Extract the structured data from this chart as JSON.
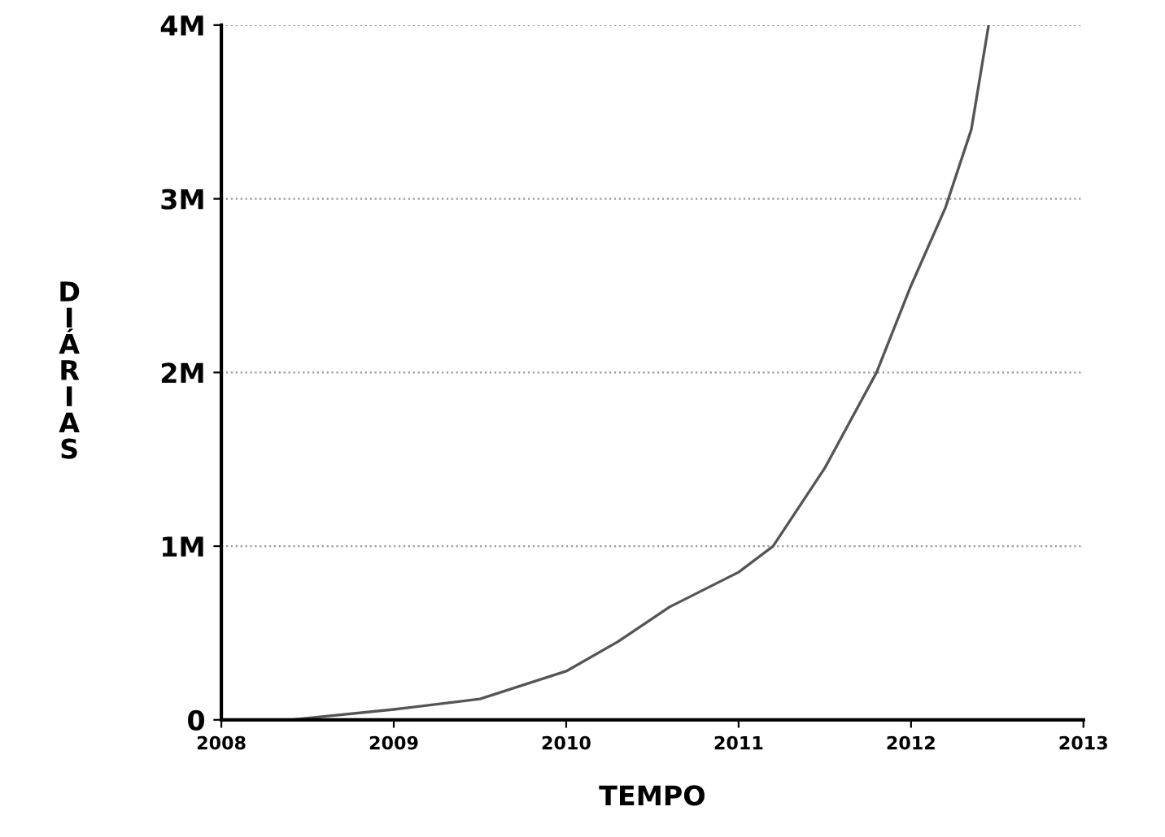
{
  "chart_data": {
    "type": "line",
    "xlabel": "TEMPO",
    "ylabel": "DIÁRIAS",
    "x": [
      2008.0,
      2008.4,
      2009.0,
      2009.5,
      2010.0,
      2010.3,
      2010.6,
      2011.0,
      2011.2,
      2011.5,
      2011.8,
      2012.0,
      2012.2,
      2012.35,
      2012.45
    ],
    "series": [
      {
        "color": "#555555",
        "values": [
          0,
          0,
          0.06,
          0.12,
          0.28,
          0.45,
          0.65,
          0.85,
          1.0,
          1.45,
          2.0,
          2.5,
          2.95,
          3.4,
          4.0
        ]
      }
    ],
    "xlim": [
      2008,
      2013
    ],
    "xticks": [
      2008,
      2009,
      2010,
      2011,
      2012,
      2013
    ],
    "ylim": [
      0,
      4
    ],
    "yticks": [
      0,
      {
        "value": 1,
        "label": "1M"
      },
      {
        "value": 2,
        "label": "2M"
      },
      {
        "value": 3,
        "label": "3M"
      },
      {
        "value": 4,
        "label": "4M"
      }
    ],
    "grid": "y",
    "marker": "none",
    "line_style": "solid"
  }
}
